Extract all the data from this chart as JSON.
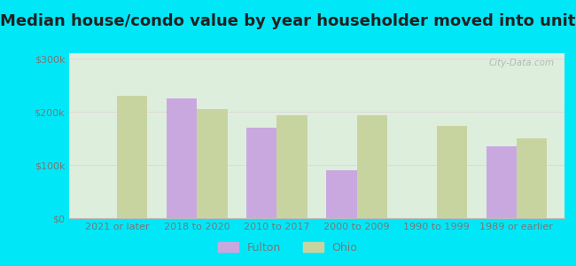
{
  "title": "Median house/condo value by year householder moved into unit",
  "categories": [
    "2021 or later",
    "2018 to 2020",
    "2010 to 2017",
    "2000 to 2009",
    "1990 to 1999",
    "1989 or earlier"
  ],
  "fulton_values": [
    null,
    225000,
    170000,
    90000,
    null,
    135000
  ],
  "ohio_values": [
    230000,
    205000,
    193000,
    193000,
    173000,
    150000
  ],
  "fulton_color": "#c9a8e0",
  "ohio_color": "#c8d4a0",
  "background_outer": "#00e8f8",
  "background_inner_top": "#f0faf0",
  "background_inner_bottom": "#d8edd8",
  "ylabel_ticks": [
    "$0",
    "$100k",
    "$200k",
    "$300k"
  ],
  "ytick_values": [
    0,
    100000,
    200000,
    300000
  ],
  "ylim": [
    0,
    310000
  ],
  "bar_width": 0.38,
  "title_fontsize": 13,
  "tick_fontsize": 8,
  "legend_fontsize": 9,
  "grid_color": "#e0d8d8",
  "tick_color": "#777777"
}
